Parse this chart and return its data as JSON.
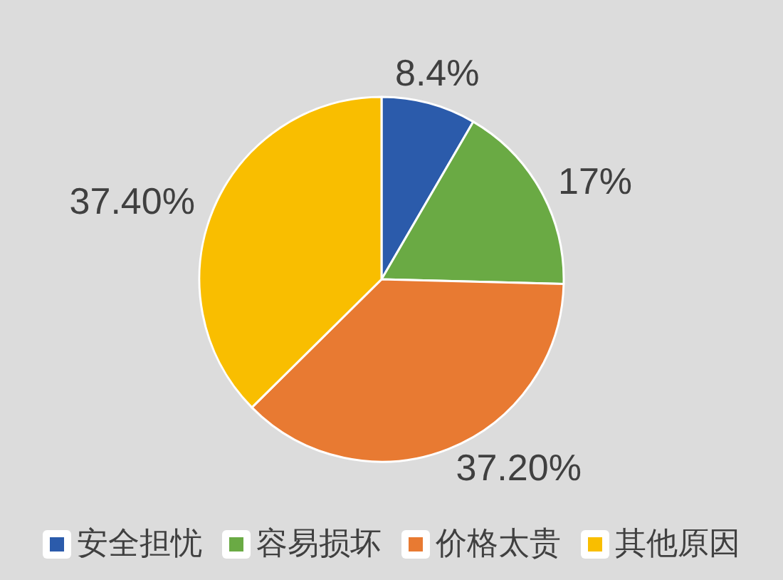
{
  "chart_data": {
    "type": "pie",
    "categories": [
      "安全担忧",
      "容易损坏",
      "价格太贵",
      "其他原因"
    ],
    "values": [
      8.4,
      17,
      37.2,
      37.4
    ],
    "colors": [
      "#2b5bab",
      "#6aaa44",
      "#e87a32",
      "#f9be00"
    ],
    "value_labels": [
      "8.4%",
      "17%",
      "37.20%",
      "37.40%"
    ],
    "legend": "bottom"
  }
}
